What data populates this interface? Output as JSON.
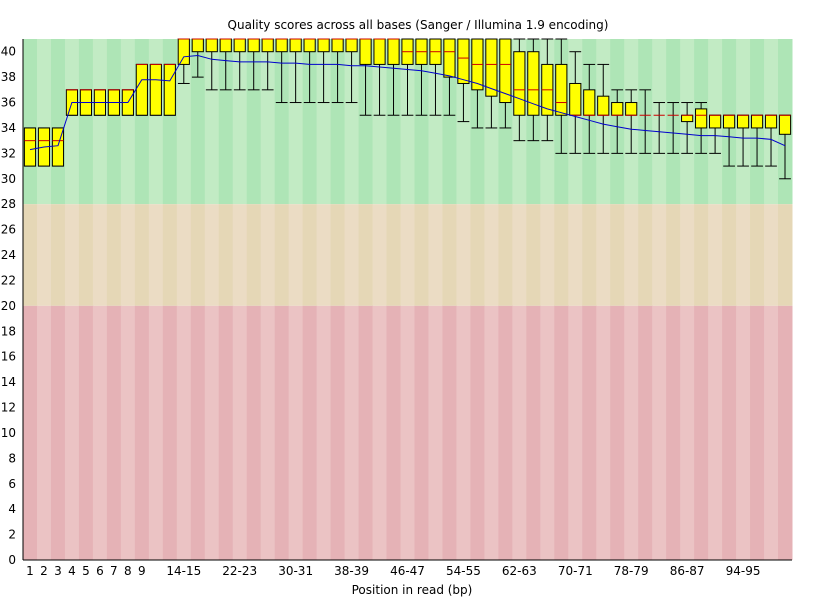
{
  "chart_data": {
    "type": "box",
    "title": "Quality scores across all bases (Sanger / Illumina 1.9 encoding)",
    "xlabel": "Position in read (bp)",
    "ylabel": "",
    "ylim": [
      0,
      41
    ],
    "y_ticks": [
      0,
      2,
      4,
      6,
      8,
      10,
      12,
      14,
      16,
      18,
      20,
      22,
      24,
      26,
      28,
      30,
      32,
      34,
      36,
      38,
      40
    ],
    "zones": [
      {
        "from": 28,
        "to": 41,
        "colors": [
          "#aee5b6",
          "#c2ebc4"
        ]
      },
      {
        "from": 20,
        "to": 28,
        "colors": [
          "#e5d7b6",
          "#ebdcc4"
        ]
      },
      {
        "from": 0,
        "to": 20,
        "colors": [
          "#e5b2b6",
          "#ebc3c4"
        ]
      }
    ],
    "box_color": "#ffff00",
    "median_color": "#cc0000",
    "mean_color": "#0000cc",
    "categories": [
      "1",
      "2",
      "3",
      "4",
      "5",
      "6",
      "7",
      "8",
      "9",
      "10-11",
      "12-13",
      "14-15",
      "16-17",
      "18-19",
      "20-21",
      "22-23",
      "24-25",
      "26-27",
      "28-29",
      "30-31",
      "32-33",
      "34-35",
      "36-37",
      "38-39",
      "40-41",
      "42-43",
      "44-45",
      "46-47",
      "48-49",
      "50-51",
      "52-53",
      "54-55",
      "56-57",
      "58-59",
      "60-61",
      "62-63",
      "64-65",
      "66-67",
      "68-69",
      "70-71",
      "72-73",
      "74-75",
      "76-77",
      "78-79",
      "80-81",
      "82-83",
      "84-85",
      "86-87",
      "88-89",
      "90-91",
      "92-93",
      "94-95",
      "96-97",
      "98-99",
      "100-101"
    ],
    "tick_labels": [
      {
        "index": 0,
        "label": "1"
      },
      {
        "index": 1,
        "label": "2"
      },
      {
        "index": 2,
        "label": "3"
      },
      {
        "index": 3,
        "label": "4"
      },
      {
        "index": 4,
        "label": "5"
      },
      {
        "index": 5,
        "label": "6"
      },
      {
        "index": 6,
        "label": "7"
      },
      {
        "index": 7,
        "label": "8"
      },
      {
        "index": 8,
        "label": "9"
      },
      {
        "index": 11,
        "label": "14-15"
      },
      {
        "index": 15,
        "label": "22-23"
      },
      {
        "index": 19,
        "label": "30-31"
      },
      {
        "index": 23,
        "label": "38-39"
      },
      {
        "index": 27,
        "label": "46-47"
      },
      {
        "index": 31,
        "label": "54-55"
      },
      {
        "index": 35,
        "label": "62-63"
      },
      {
        "index": 39,
        "label": "70-71"
      },
      {
        "index": 43,
        "label": "78-79"
      },
      {
        "index": 47,
        "label": "86-87"
      },
      {
        "index": 51,
        "label": "94-95"
      }
    ],
    "series": [
      {
        "name": "lower_whisker",
        "values": [
          31,
          31,
          31,
          35,
          35,
          35,
          35,
          35,
          35,
          35,
          35,
          37.5,
          38,
          37,
          37,
          37,
          37,
          37,
          36,
          36,
          36,
          36,
          36,
          36,
          35,
          35,
          35,
          35,
          35,
          35,
          35,
          34.5,
          34,
          34,
          34,
          33,
          33,
          33,
          32,
          32,
          32,
          32,
          32,
          32,
          32,
          32,
          32,
          32,
          32,
          32,
          31,
          31,
          31,
          31,
          30
        ]
      },
      {
        "name": "lower_quartile",
        "values": [
          31,
          31,
          31,
          35,
          35,
          35,
          35,
          35,
          35,
          35,
          35,
          39,
          40,
          40,
          40,
          40,
          40,
          40,
          40,
          40,
          40,
          40,
          40,
          40,
          39,
          39,
          39,
          39,
          39,
          39,
          38,
          37.5,
          37,
          36.5,
          36,
          35,
          35,
          35,
          35,
          35,
          35,
          35,
          35,
          35,
          35,
          35,
          35,
          34.5,
          34,
          34,
          34,
          34,
          34,
          34,
          33.5
        ]
      },
      {
        "name": "median",
        "values": [
          33,
          33,
          33,
          37,
          37,
          37,
          37,
          37,
          39,
          39,
          39,
          41,
          41,
          41,
          41,
          41,
          41,
          41,
          41,
          41,
          41,
          41,
          41,
          41,
          41,
          41,
          41,
          40,
          40,
          40,
          40,
          39.5,
          39,
          39,
          39,
          37,
          37,
          37,
          36,
          35,
          35,
          35,
          35,
          35,
          35,
          35,
          35,
          35,
          35,
          35,
          35,
          35,
          35,
          35,
          35
        ]
      },
      {
        "name": "upper_quartile",
        "values": [
          34,
          34,
          34,
          37,
          37,
          37,
          37,
          37,
          39,
          39,
          39,
          41,
          41,
          41,
          41,
          41,
          41,
          41,
          41,
          41,
          41,
          41,
          41,
          41,
          41,
          41,
          41,
          41,
          41,
          41,
          41,
          41,
          41,
          41,
          41,
          40,
          40,
          39,
          39,
          37.5,
          37,
          36.5,
          36,
          36,
          35,
          35,
          35,
          35,
          35.5,
          35,
          35,
          35,
          35,
          35,
          35
        ]
      },
      {
        "name": "upper_whisker",
        "values": [
          34,
          34,
          34,
          37,
          37,
          37,
          37,
          37,
          39,
          39,
          39,
          41,
          41,
          41,
          41,
          41,
          41,
          41,
          41,
          41,
          41,
          41,
          41,
          41,
          41,
          41,
          41,
          41,
          41,
          41,
          41,
          41,
          41,
          41,
          41,
          41,
          41,
          41,
          41,
          40,
          39,
          39,
          37,
          37,
          37,
          36,
          36,
          36,
          36,
          35,
          35,
          35,
          35,
          35,
          35
        ]
      },
      {
        "name": "mean",
        "values": [
          32.3,
          32.5,
          32.6,
          36,
          36,
          36,
          36,
          36,
          37.8,
          37.8,
          37.7,
          39.6,
          39.7,
          39.4,
          39.3,
          39.2,
          39.2,
          39.2,
          39.1,
          39.1,
          39.0,
          39.0,
          39.0,
          38.9,
          38.9,
          38.8,
          38.7,
          38.6,
          38.5,
          38.3,
          38.1,
          37.8,
          37.5,
          37.1,
          36.7,
          36.3,
          35.9,
          35.5,
          35.2,
          34.9,
          34.6,
          34.3,
          34.1,
          33.9,
          33.8,
          33.7,
          33.6,
          33.5,
          33.4,
          33.4,
          33.3,
          33.2,
          33.2,
          33.1,
          32.6
        ]
      }
    ]
  }
}
